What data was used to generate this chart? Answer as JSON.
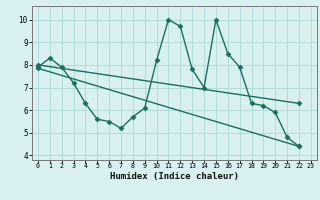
{
  "x": [
    0,
    1,
    2,
    3,
    4,
    5,
    6,
    7,
    8,
    9,
    10,
    11,
    12,
    13,
    14,
    15,
    16,
    17,
    18,
    19,
    20,
    21,
    22,
    23
  ],
  "spiky_x": [
    0,
    1,
    2,
    3,
    4,
    5,
    6,
    7,
    8,
    9,
    10,
    11,
    12,
    13,
    14,
    15,
    16,
    17,
    18,
    19,
    20,
    21,
    22
  ],
  "spiky_y": [
    7.9,
    8.3,
    7.9,
    7.2,
    6.3,
    5.6,
    5.5,
    5.2,
    5.7,
    6.1,
    8.2,
    10.0,
    9.7,
    7.8,
    7.0,
    10.0,
    8.5,
    7.9,
    6.3,
    6.2,
    5.9,
    4.8,
    4.4
  ],
  "upper_line_x": [
    0,
    22
  ],
  "upper_line_y": [
    8.0,
    6.3
  ],
  "lower_line_x": [
    0,
    22
  ],
  "lower_line_y": [
    7.85,
    4.4
  ],
  "line_color": "#1a7060",
  "bg_color": "#d8f0f0",
  "grid_color": "#add8d8",
  "xlabel": "Humidex (Indice chaleur)",
  "xlim": [
    -0.5,
    23.5
  ],
  "ylim": [
    3.8,
    10.6
  ],
  "yticks": [
    4,
    5,
    6,
    7,
    8,
    9,
    10
  ],
  "ytick_labels": [
    "4",
    "5",
    "6",
    "7",
    "8",
    "9",
    "10"
  ],
  "xticks": [
    0,
    1,
    2,
    3,
    4,
    5,
    6,
    7,
    8,
    9,
    10,
    11,
    12,
    13,
    14,
    15,
    16,
    17,
    18,
    19,
    20,
    21,
    22,
    23
  ],
  "xtick_labels": [
    "0",
    "1",
    "2",
    "3",
    "4",
    "5",
    "6",
    "7",
    "8",
    "9",
    "10",
    "11",
    "12",
    "13",
    "14",
    "15",
    "16",
    "17",
    "18",
    "19",
    "20",
    "21",
    "22",
    "23"
  ],
  "marker": "D",
  "markersize": 2.5,
  "linewidth": 1.0
}
